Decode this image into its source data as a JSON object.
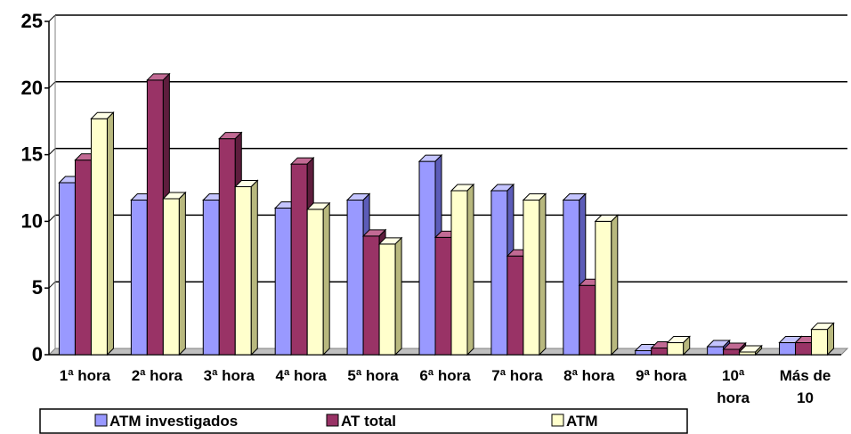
{
  "chart_data": {
    "type": "bar",
    "title": "",
    "xlabel": "",
    "ylabel": "",
    "ylim": [
      0,
      25
    ],
    "yticks": [
      0,
      5,
      10,
      15,
      20,
      25
    ],
    "grid": true,
    "legend_position": "bottom",
    "categories": [
      [
        "1ª hora"
      ],
      [
        "2ª hora"
      ],
      [
        "3ª hora"
      ],
      [
        "4ª hora"
      ],
      [
        "5ª hora"
      ],
      [
        "6ª hora"
      ],
      [
        "7ª hora"
      ],
      [
        "8ª hora"
      ],
      [
        "9ª hora"
      ],
      [
        "10ª",
        "hora"
      ],
      [
        "Más de",
        "10"
      ]
    ],
    "series": [
      {
        "name": "ATM investigados",
        "color": "#9999ff",
        "side_color": "#5c5cb8",
        "top_color": "#c4c4ff",
        "values": [
          12.9,
          11.6,
          11.6,
          11.0,
          11.6,
          14.5,
          12.3,
          11.6,
          0.3,
          0.6,
          0.9
        ]
      },
      {
        "name": "AT total",
        "color": "#993366",
        "side_color": "#5e1d3d",
        "top_color": "#c26a94",
        "values": [
          14.6,
          20.6,
          16.2,
          14.3,
          8.9,
          8.8,
          7.4,
          5.2,
          0.5,
          0.4,
          0.9
        ]
      },
      {
        "name": "ATM",
        "color": "#ffffcc",
        "side_color": "#b8b87e",
        "top_color": "#ffffe6",
        "values": [
          17.7,
          11.7,
          12.6,
          10.9,
          8.3,
          12.3,
          11.6,
          10.0,
          0.9,
          0.2,
          1.9
        ]
      }
    ]
  }
}
